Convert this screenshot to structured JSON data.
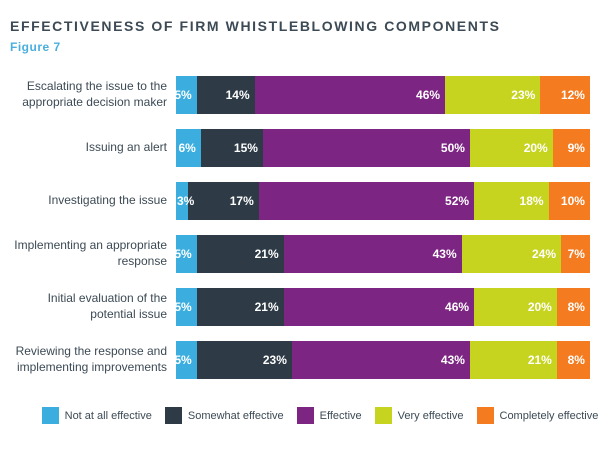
{
  "header": {
    "title": "EFFECTIVENESS OF FIRM WHISTLEBLOWING COMPONENTS",
    "figure_label": "Figure 7"
  },
  "chart_data": {
    "type": "bar",
    "orientation": "horizontal",
    "stacked": true,
    "xlim": [
      0,
      100
    ],
    "value_suffix": "%",
    "legend_position": "bottom",
    "grid": false,
    "categories": [
      "Escalating the issue to the appropriate decision maker",
      "Issuing an alert",
      "Investigating the issue",
      "Implementing an appropriate response",
      "Initial evaluation of the potential issue",
      "Reviewing the response and implementing improvements"
    ],
    "series": [
      {
        "name": "Not at all effective",
        "color": "#3BAEDF",
        "values": [
          5,
          6,
          3,
          5,
          5,
          5
        ]
      },
      {
        "name": "Somewhat effective",
        "color": "#2E3B46",
        "values": [
          14,
          15,
          17,
          21,
          21,
          23
        ]
      },
      {
        "name": "Effective",
        "color": "#7D2583",
        "values": [
          46,
          50,
          52,
          43,
          46,
          43
        ]
      },
      {
        "name": "Very effective",
        "color": "#C6D41F",
        "values": [
          23,
          20,
          18,
          24,
          20,
          21
        ]
      },
      {
        "name": "Completely effective",
        "color": "#F47B20",
        "values": [
          12,
          9,
          10,
          7,
          8,
          8
        ]
      }
    ]
  },
  "colors": {
    "title_text": "#3C4A55",
    "figure_label_text": "#4AAFDE",
    "segment_value_text": "#ffffff"
  }
}
